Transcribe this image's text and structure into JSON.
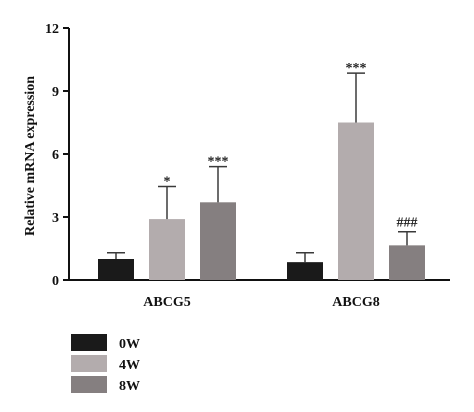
{
  "chart_data": {
    "type": "bar",
    "categories": [
      "ABCG5",
      "ABCG8"
    ],
    "xlabel": "",
    "ylabel": "Relative mRNA expression",
    "ylim": [
      0,
      12
    ],
    "yticks": [
      "0",
      "3",
      "6",
      "9",
      "12"
    ],
    "grid": false,
    "legend_position": "bottom-left",
    "series": [
      {
        "name": "0W",
        "color": "#1a1a1a",
        "values": [
          1.0,
          0.85
        ],
        "errors": [
          0.3,
          0.45
        ],
        "annotations": [
          "",
          ""
        ]
      },
      {
        "name": "4W",
        "color": "#b3acad",
        "values": [
          2.9,
          7.5
        ],
        "errors": [
          1.55,
          2.35
        ],
        "annotations": [
          "*",
          "***"
        ]
      },
      {
        "name": "8W",
        "color": "#857f80",
        "values": [
          3.7,
          1.65
        ],
        "errors": [
          1.7,
          0.65
        ],
        "annotations": [
          "***",
          "###"
        ]
      }
    ]
  }
}
